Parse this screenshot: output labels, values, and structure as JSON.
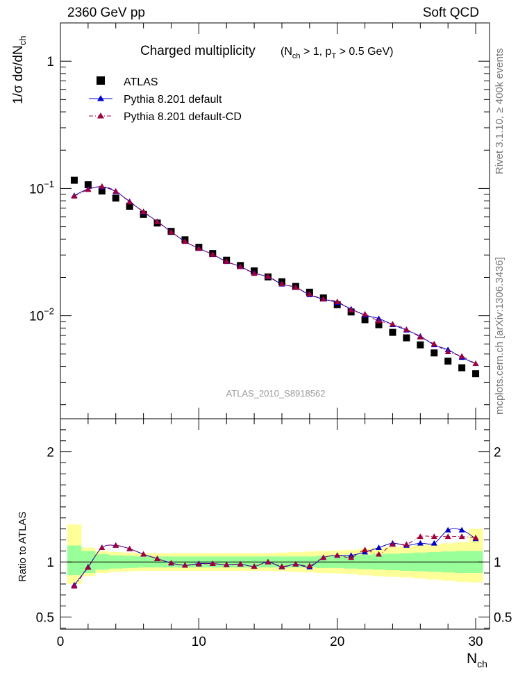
{
  "header": {
    "left": "2360 GeV pp",
    "right": "Soft QCD"
  },
  "side_labels": {
    "rivet": "Rivet 3.1.10, ≥ 400k events",
    "mcplots": "mcplots.cern.ch [arXiv:1306.3436]"
  },
  "chart_data": [
    {
      "type": "scatter",
      "title": "Charged multiplicity",
      "title_cut": {
        "a": "(N",
        "a_sub": "ch",
        "b": " > 1, p",
        "b_sub": "T",
        "c": " > 0.5 GeV)"
      },
      "watermark": "ATLAS_2010_S8918562",
      "ylabel": "1/σ dσ/dN",
      "ylabel_sub": "ch",
      "yscale": "log",
      "ylim": [
        0.00155,
        2.0
      ],
      "xlim": [
        0,
        31
      ],
      "y_ticks": [
        {
          "value": 1,
          "base": "1",
          "exp": ""
        },
        {
          "value": 0.1,
          "base": "10",
          "exp": "−1"
        },
        {
          "value": 0.01,
          "base": "10",
          "exp": "−2"
        }
      ],
      "legend": {
        "placement": "top-left",
        "entries": [
          "ATLAS",
          "Pythia 8.201 default",
          "Pythia 8.201 default-CD"
        ]
      },
      "x": [
        1,
        2,
        3,
        4,
        5,
        6,
        7,
        8,
        9,
        10,
        11,
        12,
        13,
        14,
        15,
        16,
        17,
        18,
        19,
        20,
        21,
        22,
        23,
        24,
        25,
        26,
        27,
        28,
        29,
        30
      ],
      "series": [
        {
          "name": "ATLAS",
          "style": "square",
          "color": "#000000",
          "values": [
            0.116,
            0.107,
            0.0955,
            0.084,
            0.0725,
            0.0625,
            0.0535,
            0.046,
            0.0395,
            0.0345,
            0.0308,
            0.0273,
            0.0248,
            0.0225,
            0.0202,
            0.0185,
            0.017,
            0.0153,
            0.0138,
            0.0122,
            0.0107,
            0.0093,
            0.0085,
            0.0074,
            0.0067,
            0.0059,
            0.0051,
            0.0044,
            0.0039,
            0.0035
          ]
        },
        {
          "name": "Pythia 8.201 default",
          "style": "solid",
          "color": "#0000cc",
          "values": [
            0.088,
            0.099,
            0.103,
            0.0945,
            0.079,
            0.0653,
            0.0551,
            0.0457,
            0.0383,
            0.0338,
            0.0303,
            0.0266,
            0.0243,
            0.0216,
            0.0202,
            0.0177,
            0.0167,
            0.0146,
            0.0135,
            0.0127,
            0.0113,
            0.0101,
            0.0095,
            0.0085,
            0.0077,
            0.0069,
            0.0059,
            0.0054,
            0.0047,
            0.0042
          ]
        },
        {
          "name": "Pythia 8.201 default-CD",
          "style": "dashdot",
          "color": "#a0003c",
          "values": [
            0.087,
            0.098,
            0.104,
            0.0953,
            0.0783,
            0.0659,
            0.0548,
            0.0456,
            0.0383,
            0.0338,
            0.0303,
            0.0267,
            0.0243,
            0.0215,
            0.0203,
            0.0178,
            0.0167,
            0.0148,
            0.0135,
            0.0129,
            0.0111,
            0.0103,
            0.0091,
            0.0086,
            0.0078,
            0.0068,
            0.006,
            0.0052,
            0.0048,
            0.0042
          ]
        }
      ]
    },
    {
      "type": "scatter",
      "ylabel": "Ratio to ATLAS",
      "xlabel": "N",
      "xlabel_sub": "ch",
      "ylim": [
        0.39,
        2.3
      ],
      "xlim": [
        0,
        31
      ],
      "x_ticks": [
        0,
        10,
        20,
        30
      ],
      "y_ticks": [
        0.5,
        1,
        2
      ],
      "band_inner_color": "#99ff99",
      "band_outer_color": "#ffff99",
      "band_inner": [
        [
          0.88,
          1.15
        ],
        [
          0.9,
          1.1
        ],
        [
          0.93,
          1.07
        ],
        [
          0.94,
          1.06
        ],
        [
          0.945,
          1.055
        ],
        [
          0.95,
          1.05
        ],
        [
          0.95,
          1.05
        ],
        [
          0.95,
          1.05
        ],
        [
          0.95,
          1.05
        ],
        [
          0.95,
          1.05
        ],
        [
          0.95,
          1.05
        ],
        [
          0.95,
          1.05
        ],
        [
          0.95,
          1.05
        ],
        [
          0.95,
          1.05
        ],
        [
          0.95,
          1.05
        ],
        [
          0.95,
          1.05
        ],
        [
          0.95,
          1.05
        ],
        [
          0.95,
          1.05
        ],
        [
          0.945,
          1.055
        ],
        [
          0.945,
          1.055
        ],
        [
          0.94,
          1.06
        ],
        [
          0.935,
          1.065
        ],
        [
          0.93,
          1.07
        ],
        [
          0.925,
          1.075
        ],
        [
          0.92,
          1.08
        ],
        [
          0.915,
          1.085
        ],
        [
          0.91,
          1.09
        ],
        [
          0.905,
          1.095
        ],
        [
          0.9,
          1.1
        ],
        [
          0.9,
          1.1
        ]
      ],
      "band_outer": [
        [
          0.8,
          1.34
        ],
        [
          0.87,
          1.13
        ],
        [
          0.9,
          1.1
        ],
        [
          0.91,
          1.09
        ],
        [
          0.915,
          1.085
        ],
        [
          0.92,
          1.08
        ],
        [
          0.92,
          1.08
        ],
        [
          0.92,
          1.08
        ],
        [
          0.92,
          1.08
        ],
        [
          0.92,
          1.08
        ],
        [
          0.92,
          1.08
        ],
        [
          0.92,
          1.08
        ],
        [
          0.92,
          1.08
        ],
        [
          0.92,
          1.08
        ],
        [
          0.92,
          1.08
        ],
        [
          0.915,
          1.085
        ],
        [
          0.91,
          1.09
        ],
        [
          0.905,
          1.095
        ],
        [
          0.9,
          1.1
        ],
        [
          0.895,
          1.105
        ],
        [
          0.89,
          1.11
        ],
        [
          0.88,
          1.12
        ],
        [
          0.87,
          1.13
        ],
        [
          0.865,
          1.135
        ],
        [
          0.86,
          1.14
        ],
        [
          0.85,
          1.15
        ],
        [
          0.84,
          1.16
        ],
        [
          0.83,
          1.17
        ],
        [
          0.82,
          1.18
        ],
        [
          0.815,
          1.3
        ]
      ],
      "series": [
        {
          "name": "Pythia 8.201 default",
          "style": "solid",
          "color": "#0000cc",
          "values": [
            0.79,
            0.955,
            1.13,
            1.15,
            1.12,
            1.07,
            1.03,
            0.99,
            0.97,
            0.985,
            0.985,
            0.975,
            0.98,
            0.96,
            1.0,
            0.955,
            0.98,
            0.955,
            1.04,
            1.06,
            1.06,
            1.09,
            1.13,
            1.17,
            1.15,
            1.17,
            1.17,
            1.29,
            1.29,
            1.21
          ]
        },
        {
          "name": "Pythia 8.201 default-CD",
          "style": "dashdot",
          "color": "#a0003c",
          "values": [
            0.78,
            0.95,
            1.13,
            1.15,
            1.12,
            1.07,
            1.03,
            0.99,
            0.97,
            0.98,
            0.985,
            0.975,
            0.98,
            0.96,
            1.0,
            0.96,
            0.98,
            0.965,
            1.04,
            1.06,
            1.04,
            1.11,
            1.07,
            1.16,
            1.16,
            1.23,
            1.23,
            1.23,
            1.23,
            1.22
          ]
        }
      ]
    }
  ]
}
